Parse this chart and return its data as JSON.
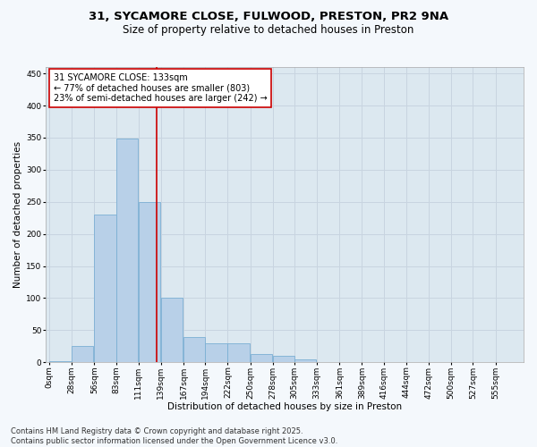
{
  "title_line1": "31, SYCAMORE CLOSE, FULWOOD, PRESTON, PR2 9NA",
  "title_line2": "Size of property relative to detached houses in Preston",
  "xlabel": "Distribution of detached houses by size in Preston",
  "ylabel": "Number of detached properties",
  "bin_labels": [
    "0sqm",
    "28sqm",
    "56sqm",
    "83sqm",
    "111sqm",
    "139sqm",
    "167sqm",
    "194sqm",
    "222sqm",
    "250sqm",
    "278sqm",
    "305sqm",
    "333sqm",
    "361sqm",
    "389sqm",
    "416sqm",
    "444sqm",
    "472sqm",
    "500sqm",
    "527sqm",
    "555sqm"
  ],
  "bin_left_edges": [
    0,
    28,
    56,
    83,
    111,
    139,
    167,
    194,
    222,
    250,
    278,
    305,
    333,
    361,
    389,
    416,
    444,
    472,
    500,
    527
  ],
  "bin_width": 27,
  "bar_heights": [
    2,
    25,
    230,
    348,
    250,
    100,
    40,
    30,
    30,
    13,
    10,
    5,
    1,
    0,
    0,
    0,
    0,
    0,
    0,
    0
  ],
  "bar_color": "#b8d0e8",
  "bar_edgecolor": "#7bafd4",
  "grid_color": "#c8d4e0",
  "bg_color": "#dce8f0",
  "fig_bg_color": "#f4f8fc",
  "property_line_x": 133,
  "property_line_color": "#cc0000",
  "annotation_text": "31 SYCAMORE CLOSE: 133sqm\n← 77% of detached houses are smaller (803)\n23% of semi-detached houses are larger (242) →",
  "annotation_box_facecolor": "#ffffff",
  "annotation_box_edgecolor": "#cc0000",
  "ylim": [
    0,
    460
  ],
  "yticks": [
    0,
    50,
    100,
    150,
    200,
    250,
    300,
    350,
    400,
    450
  ],
  "xlim_left": -5,
  "xlim_right": 590,
  "footer_text": "Contains HM Land Registry data © Crown copyright and database right 2025.\nContains public sector information licensed under the Open Government Licence v3.0.",
  "title_fontsize": 9.5,
  "subtitle_fontsize": 8.5,
  "axis_label_fontsize": 7.5,
  "tick_fontsize": 6.5,
  "annotation_fontsize": 7,
  "footer_fontsize": 6
}
